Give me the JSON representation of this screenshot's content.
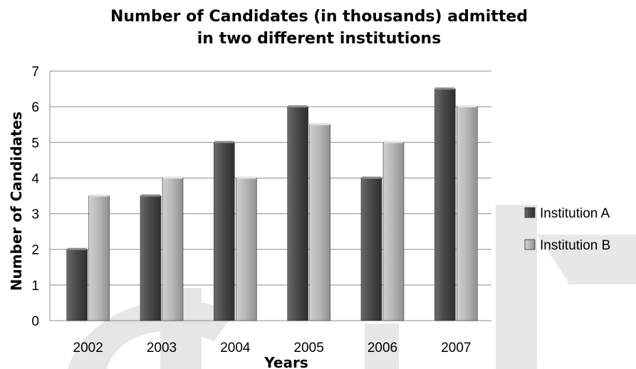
{
  "chart_data": {
    "type": "bar",
    "title_line1": "Number of Candidates (in thousands) admitted",
    "title_line2": "in two different institutions",
    "xlabel": "Years",
    "ylabel": "Number of Candidates",
    "categories": [
      "2002",
      "2003",
      "2004",
      "2005",
      "2006",
      "2007"
    ],
    "yticks": [
      "0",
      "1",
      "2",
      "3",
      "4",
      "5",
      "6",
      "7"
    ],
    "ylim": [
      0,
      7
    ],
    "grid": true,
    "legend_position": "right",
    "series": [
      {
        "name": "Institution A",
        "values": [
          2,
          3.5,
          5,
          6,
          4,
          6.5
        ],
        "color": "#555555"
      },
      {
        "name": "Institution B",
        "values": [
          3.5,
          4,
          4,
          5.5,
          5,
          6
        ],
        "color": "#b5b5b5"
      }
    ]
  }
}
